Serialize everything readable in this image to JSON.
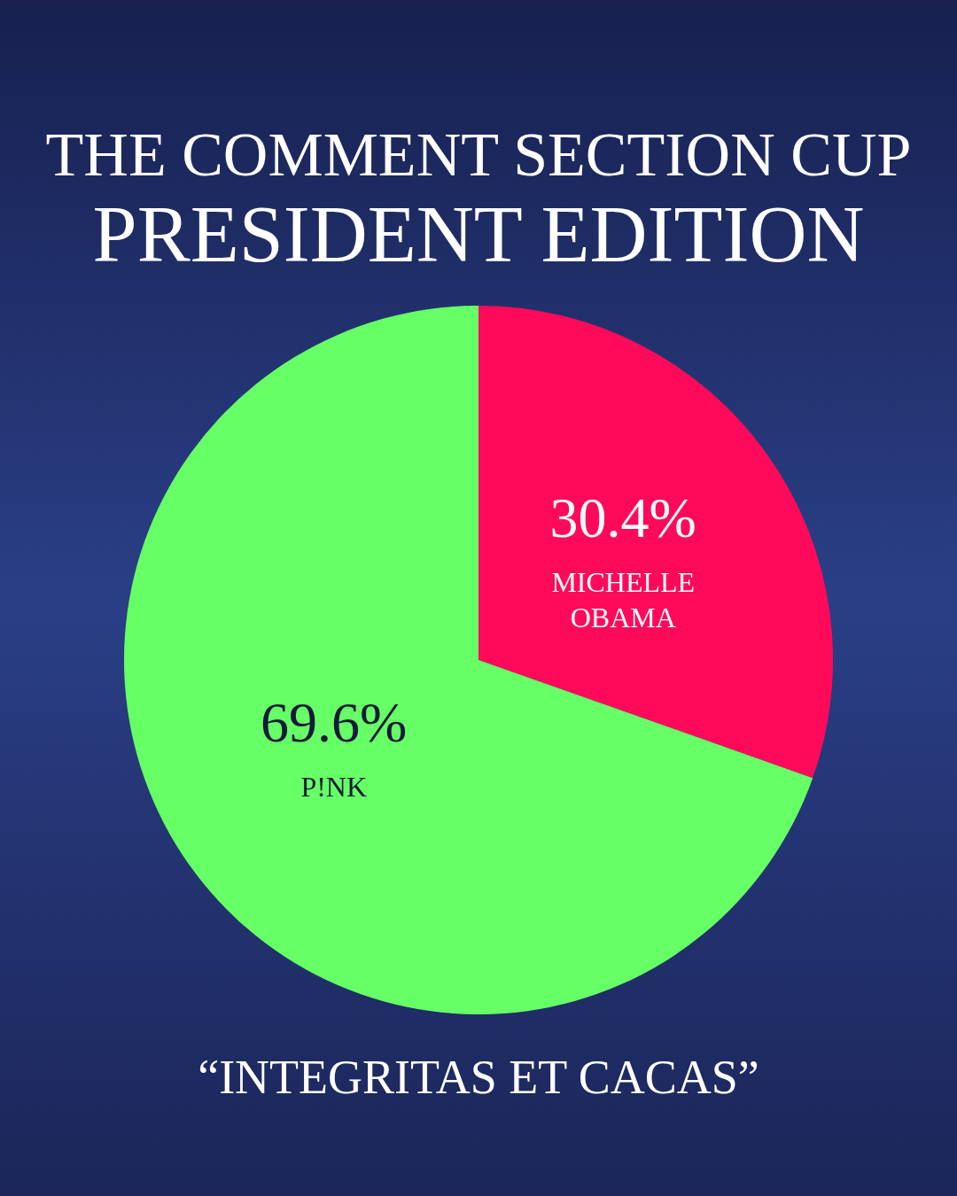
{
  "chart_data": {
    "type": "pie",
    "title": "THE COMMENT SECTION CUP",
    "subtitle": "PRESIDENT EDITION",
    "categories": [
      "MICHELLE OBAMA",
      "P!NK"
    ],
    "values": [
      30.4,
      69.6
    ],
    "value_labels": [
      "30.4%",
      "69.6%"
    ],
    "colors": [
      "#ff0a5a",
      "#66ff66"
    ],
    "legend": false,
    "annotations": [
      "“INTEGRITAS ET CACAS”"
    ]
  }
}
